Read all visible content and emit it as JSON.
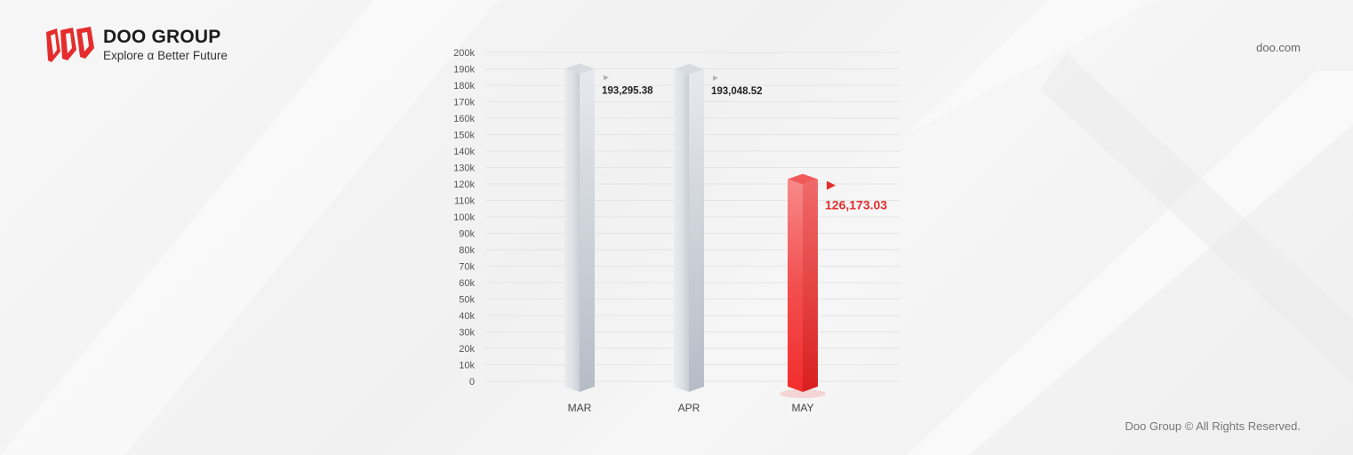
{
  "brand": {
    "name": "DOO GROUP",
    "tagline": "Explore α Better Future",
    "url": "doo.com",
    "copyright": "Doo Group © All Rights Reserved."
  },
  "colors": {
    "accent": "#ef2b2b",
    "bar": "#dfe3e8",
    "grid": "#e4e4e4"
  },
  "chart_data": {
    "type": "bar",
    "categories": [
      "MAR",
      "APR",
      "MAY"
    ],
    "values": [
      193295.38,
      193048.52,
      126173.03
    ],
    "value_labels": [
      "193,295.38",
      "193,048.52",
      "126,173.03"
    ],
    "highlight_index": 2,
    "ylim": [
      0,
      200000
    ],
    "ytick_step": 10000,
    "ytick_labels": [
      "0",
      "10k",
      "20k",
      "30k",
      "40k",
      "50k",
      "60k",
      "70k",
      "80k",
      "90k",
      "100k",
      "110k",
      "120k",
      "130k",
      "140k",
      "150k",
      "160k",
      "170k",
      "180k",
      "190k",
      "200k"
    ],
    "grid": true,
    "legend": false
  }
}
